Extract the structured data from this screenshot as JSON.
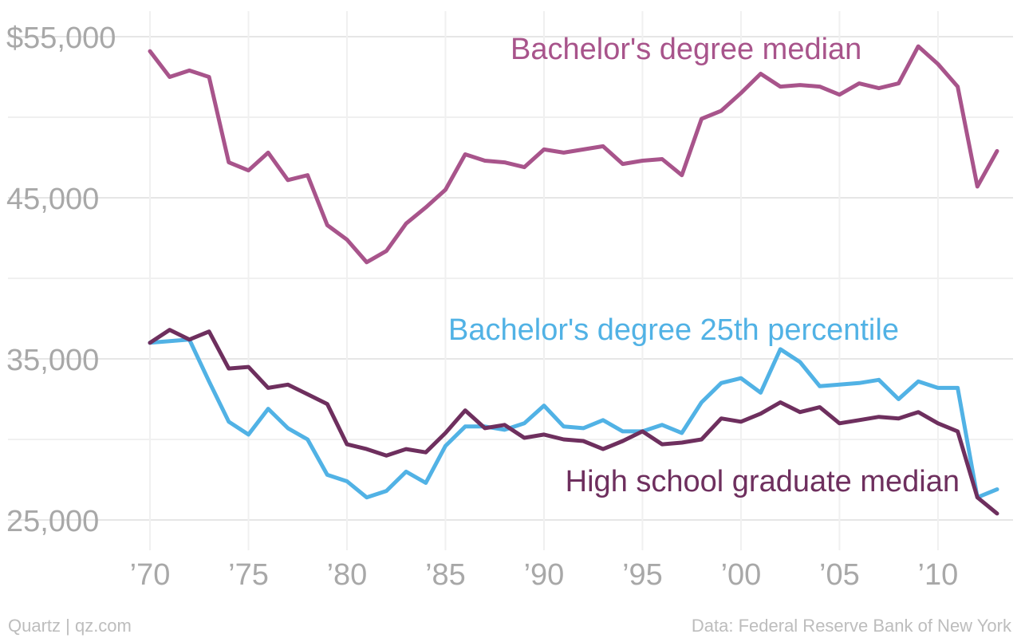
{
  "footer": {
    "source_left": "Quartz | qz.com",
    "source_right": "Data: Federal Reserve Bank of New York"
  },
  "chart_data": {
    "type": "line",
    "title": "",
    "xlabel": "",
    "ylabel": "",
    "xlim": [
      1970,
      2013
    ],
    "ylim": [
      25000,
      55000
    ],
    "grid": true,
    "y_ticks": [
      {
        "value": 55000,
        "label": "$55,000"
      },
      {
        "value": 45000,
        "label": "45,000"
      },
      {
        "value": 35000,
        "label": "35,000"
      },
      {
        "value": 25000,
        "label": "25,000"
      }
    ],
    "x_ticks": [
      {
        "value": 1970,
        "label": "’70"
      },
      {
        "value": 1975,
        "label": "’75"
      },
      {
        "value": 1980,
        "label": "’80"
      },
      {
        "value": 1985,
        "label": "’85"
      },
      {
        "value": 1990,
        "label": "’90"
      },
      {
        "value": 1995,
        "label": "’95"
      },
      {
        "value": 2000,
        "label": "’00"
      },
      {
        "value": 2005,
        "label": "’05"
      },
      {
        "value": 2010,
        "label": "’10"
      }
    ],
    "x": [
      1970,
      1971,
      1972,
      1973,
      1974,
      1975,
      1976,
      1977,
      1978,
      1979,
      1980,
      1981,
      1982,
      1983,
      1984,
      1985,
      1986,
      1987,
      1988,
      1989,
      1990,
      1991,
      1992,
      1993,
      1994,
      1995,
      1996,
      1997,
      1998,
      1999,
      2000,
      2001,
      2002,
      2003,
      2004,
      2005,
      2006,
      2007,
      2008,
      2009,
      2010,
      2011,
      2012,
      2013
    ],
    "series": [
      {
        "name": "Bachelor's degree median",
        "color": "#a8548b",
        "values": [
          54100,
          52500,
          52900,
          52500,
          47200,
          46700,
          47800,
          46100,
          46400,
          43300,
          42400,
          41000,
          41700,
          43400,
          44400,
          45500,
          47700,
          47300,
          47200,
          46900,
          48000,
          47800,
          48000,
          48200,
          47100,
          47300,
          47400,
          46400,
          49900,
          50400,
          51500,
          52700,
          51900,
          52000,
          51900,
          51400,
          52100,
          51800,
          52100,
          54400,
          53300,
          51900,
          45700,
          47900
        ]
      },
      {
        "name": "Bachelor's degree 25th percentile",
        "color": "#51b2e5",
        "values": [
          36000,
          36100,
          36200,
          33600,
          31100,
          30300,
          31900,
          30700,
          30000,
          27800,
          27400,
          26400,
          26800,
          28000,
          27300,
          29600,
          30800,
          30800,
          30600,
          31000,
          32100,
          30800,
          30700,
          31200,
          30500,
          30500,
          30900,
          30400,
          32300,
          33500,
          33800,
          32900,
          35600,
          34800,
          33300,
          33400,
          33500,
          33700,
          32500,
          33600,
          33200,
          33200,
          26400,
          26900
        ]
      },
      {
        "name": "High school graduate median",
        "color": "#6e2f5e",
        "values": [
          36000,
          36800,
          36200,
          36700,
          34400,
          34500,
          33200,
          33400,
          32800,
          32200,
          29700,
          29400,
          29000,
          29400,
          29200,
          30400,
          31800,
          30700,
          30900,
          30100,
          30300,
          30000,
          29900,
          29400,
          29900,
          30500,
          29700,
          29800,
          30000,
          31300,
          31100,
          31600,
          32300,
          31700,
          32000,
          31000,
          31200,
          31400,
          31300,
          31700,
          31000,
          30500,
          26400,
          25400
        ]
      }
    ],
    "annotations": [
      {
        "text": "Bachelor's degree median",
        "series": 0
      },
      {
        "text": "Bachelor's degree 25th percentile",
        "series": 1
      },
      {
        "text": "High school graduate median",
        "series": 2
      }
    ]
  }
}
